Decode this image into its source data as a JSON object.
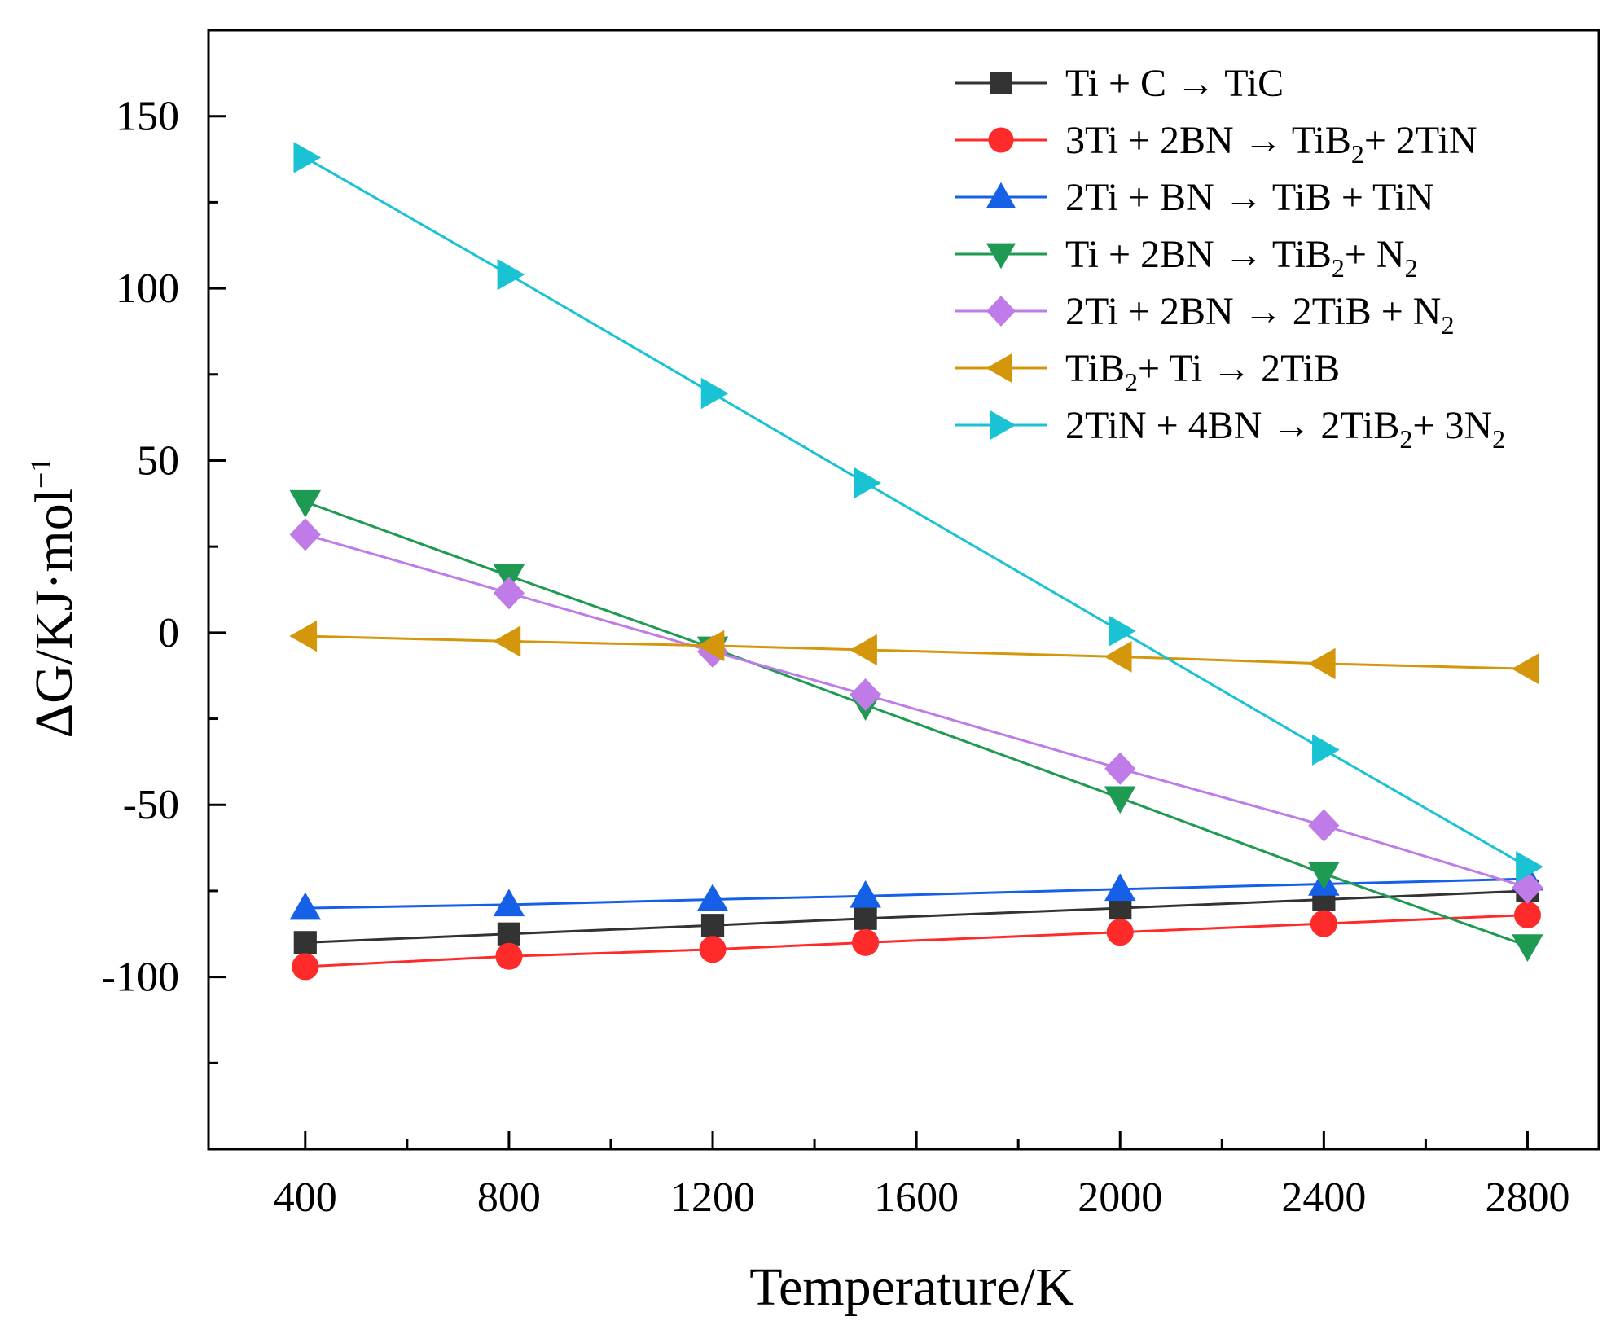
{
  "chart_data": {
    "type": "line",
    "title": "",
    "xlabel": "Temperature/K",
    "ylabel": "ΔG/KJ·mol⁻¹",
    "ylabel_parts": {
      "main": "ΔG/KJ·mol",
      "sup": "−1"
    },
    "xlim": [
      210,
      2940
    ],
    "ylim": [
      -150,
      175
    ],
    "x_ticks": [
      400,
      800,
      1200,
      1600,
      2000,
      2400,
      2800
    ],
    "x_tick_labels": [
      "400",
      "800",
      "1200",
      "1600",
      "2000",
      "2400",
      "2800"
    ],
    "y_ticks": [
      150,
      100,
      50,
      0,
      -50,
      -100
    ],
    "y_tick_labels": [
      "150",
      "100",
      "50",
      "0",
      "-50",
      "-100"
    ],
    "x": [
      400,
      800,
      1200,
      1500,
      2000,
      2400,
      2800
    ],
    "legend_position": "top-right",
    "grid": false,
    "series": [
      {
        "name": "Ti + C → TiC",
        "label_parts": [
          {
            "t": " Ti + C → TiC"
          }
        ],
        "color": "#333333",
        "marker": "square",
        "values": [
          -90,
          -87.5,
          -85,
          -83,
          -80,
          -77.5,
          -75
        ]
      },
      {
        "name": "3Ti + 2BN → TiB2+ 2TiN",
        "label_parts": [
          {
            "t": "3Ti + 2BN → TiB"
          },
          {
            "t": "2",
            "sub": true
          },
          {
            "t": "+ 2TiN"
          }
        ],
        "color": "#ff2a2a",
        "marker": "circle",
        "values": [
          -97,
          -94,
          -92,
          -90,
          -87,
          -84.5,
          -82
        ]
      },
      {
        "name": "2Ti + BN → TiB + TiN",
        "label_parts": [
          {
            "t": "2Ti + BN → TiB + TiN"
          }
        ],
        "color": "#1560e6",
        "marker": "triangle-up",
        "values": [
          -80,
          -79,
          -77.5,
          -76.5,
          -74.5,
          -73,
          -71.5
        ]
      },
      {
        "name": "Ti + 2BN → TiB2+ N2",
        "label_parts": [
          {
            "t": "Ti + 2BN → TiB"
          },
          {
            "t": "2",
            "sub": true
          },
          {
            "t": "+ N"
          },
          {
            "t": "2",
            "sub": true
          }
        ],
        "color": "#1e9a53",
        "marker": "triangle-down",
        "values": [
          38,
          16.5,
          -4.5,
          -21,
          -48,
          -70,
          -91
        ]
      },
      {
        "name": "2Ti + 2BN → 2TiB + N2",
        "label_parts": [
          {
            "t": "2Ti + 2BN → 2TiB + N"
          },
          {
            "t": "2",
            "sub": true
          }
        ],
        "color": "#bf7ce8",
        "marker": "diamond",
        "values": [
          28.5,
          11.5,
          -5.5,
          -18,
          -39.5,
          -56,
          -74
        ]
      },
      {
        "name": "TiB2+ Ti → 2TiB",
        "label_parts": [
          {
            "t": "TiB"
          },
          {
            "t": "2",
            "sub": true
          },
          {
            "t": "+ Ti → 2TiB"
          }
        ],
        "color": "#d4960a",
        "marker": "triangle-left",
        "values": [
          -1,
          -2.5,
          -3.8,
          -5,
          -7,
          -9,
          -10.5
        ]
      },
      {
        "name": "2TiN + 4BN → 2TiB2+ 3N2",
        "label_parts": [
          {
            "t": "2TiN + 4BN →  2TiB"
          },
          {
            "t": "2",
            "sub": true
          },
          {
            "t": "+ 3N"
          },
          {
            "t": "2",
            "sub": true
          }
        ],
        "color": "#1ac3d3",
        "marker": "triangle-right",
        "values": [
          138,
          104,
          69.5,
          43.5,
          0.5,
          -34,
          -68
        ]
      }
    ]
  }
}
